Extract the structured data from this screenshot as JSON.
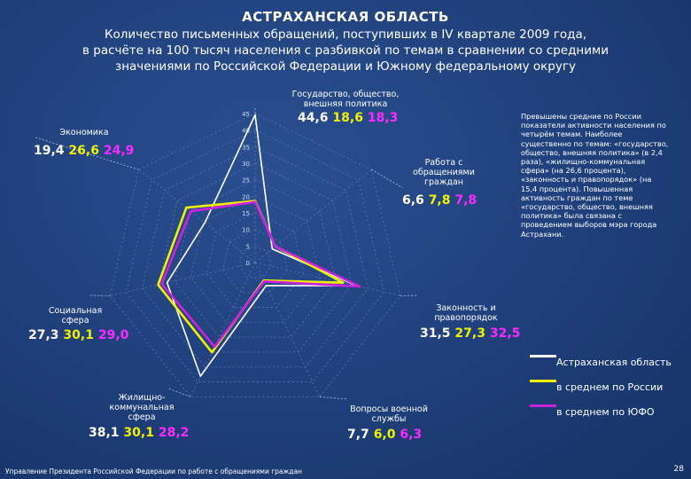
{
  "title": "АСТРАХАНСКАЯ ОБЛАСТЬ",
  "subtitle_lines": [
    "Количество письменных обращений, поступивших в IV квартале 2009 года,",
    "в расчёте на 100 тысяч населения с разбивкой по темам в сравнении со средними",
    "значениями по Российской Федерации и Южному федеральному округу"
  ],
  "note": "Превышены средние по России показатели активности населения по четырём темам. Наиболее существенно по темам: «государство, общество, внешняя политика» (в 2,4 раза), «жилищно-коммунальная сфера» (на 26,6 процента), «законность и правопорядок» (на 15,4 процента). Повышенная активность граждан по теме «государство, общество, внешняя политика» была связана с проведением выборов мэра города Астрахани.",
  "footer": "Управление Президента Российской Федерации по работе с обращениями граждан",
  "page_number": "28",
  "colors": {
    "background": "#1f3f7a",
    "astrakhan": "#ffffff",
    "russia": "#f2f200",
    "ufo": "#cc22dd"
  },
  "chart_data": {
    "type": "radar",
    "categories": [
      "Государство, общество, внешняя политика",
      "Работа с обращениями граждан",
      "Законность и правопорядок",
      "Вопросы военной службы",
      "Жилищно-коммунальная сфера",
      "Социальная сфера",
      "Экономика"
    ],
    "category_lines": [
      [
        "Государство, общество,",
        "внешняя политика"
      ],
      [
        "Работа с",
        "обращениями",
        "граждан"
      ],
      [
        "Законность и",
        "правопорядок"
      ],
      [
        "Вопросы военной",
        "службы"
      ],
      [
        "Жилищно-",
        "коммунальная",
        "сфера"
      ],
      [
        "Социальная",
        "сфера"
      ],
      [
        "Экономика"
      ]
    ],
    "value_labels": [
      [
        "44,6",
        "18,6",
        "18,3"
      ],
      [
        "6,6",
        "7,8",
        "7,8"
      ],
      [
        "31,5",
        "27,3",
        "32,5"
      ],
      [
        "7,7",
        "6,0",
        "6,3"
      ],
      [
        "38,1",
        "30,1",
        "28,2"
      ],
      [
        "27,3",
        "30,1",
        "29,0"
      ],
      [
        "19,4",
        "26,6",
        "24,9"
      ]
    ],
    "series": [
      {
        "name": "Астраханская область",
        "values": [
          44.6,
          6.6,
          31.5,
          7.7,
          38.1,
          27.3,
          19.4
        ]
      },
      {
        "name": "в среднем по России",
        "values": [
          18.6,
          7.8,
          27.3,
          6.0,
          30.1,
          30.1,
          26.6
        ]
      },
      {
        "name": "в среднем по ЮФО",
        "values": [
          18.3,
          7.8,
          32.5,
          6.3,
          28.2,
          29.0,
          24.9
        ]
      }
    ],
    "ticks": [
      "0",
      "5",
      "10",
      "15",
      "20",
      "25",
      "30",
      "35",
      "40",
      "45"
    ],
    "rlim": [
      0,
      45
    ]
  }
}
